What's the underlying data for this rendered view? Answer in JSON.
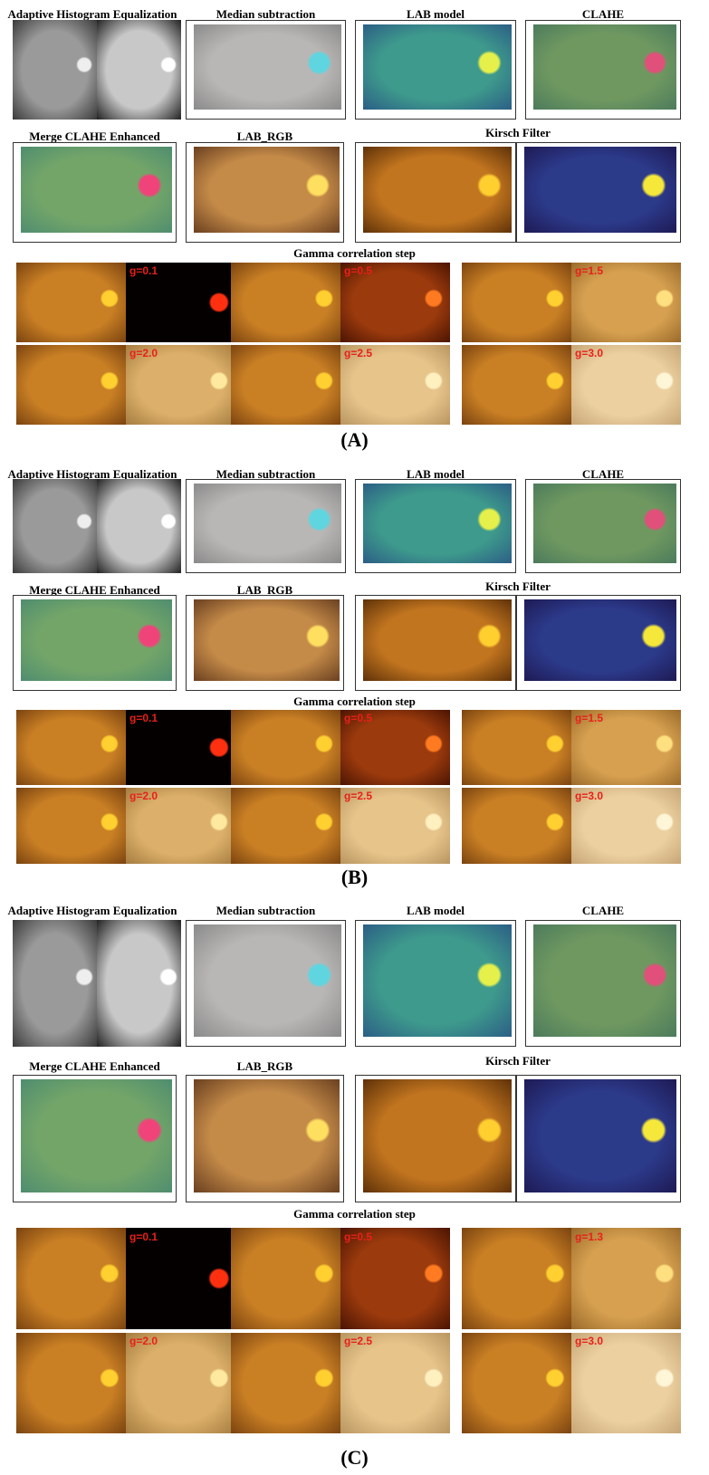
{
  "sections": [
    {
      "label": "(A)",
      "row1_titles": [
        "Adaptive Histogram Equalization",
        "Median subtraction",
        "LAB model",
        "CLAHE"
      ],
      "row2_titles": [
        "Merge CLAHE Enhanced",
        "LAB_RGB",
        "Kirsch Filter"
      ],
      "gamma_title": "Gamma correlation step",
      "gamma_labels": [
        "g=0.1",
        "g=0.5",
        "g=1.5",
        "g=2.0",
        "g=2.5",
        "g=3.0"
      ]
    },
    {
      "label": "(B)",
      "row1_titles": [
        "Adaptive Histogram Equalization",
        "Median subtraction",
        "LAB model",
        "CLAHE"
      ],
      "row2_titles": [
        "Merge CLAHE Enhanced",
        "LAB_RGB",
        "Kirsch Filter"
      ],
      "gamma_title": "Gamma correlation step",
      "gamma_labels": [
        "g=0.1",
        "g=0.5",
        "g=1.5",
        "g=2.0",
        "g=2.5",
        "g=3.0"
      ]
    },
    {
      "label": "(C)",
      "row1_titles": [
        "Adaptive Histogram Equalization",
        "Median subtraction",
        "LAB model",
        "CLAHE"
      ],
      "row2_titles": [
        "Merge CLAHE Enhanced",
        "LAB_RGB",
        "Kirsch Filter"
      ],
      "gamma_title": "Gamma correlation step",
      "gamma_labels": [
        "g=0.1",
        "g=0.5",
        "g=1.3",
        "g=2.0",
        "g=2.5",
        "g=3.0"
      ]
    }
  ]
}
